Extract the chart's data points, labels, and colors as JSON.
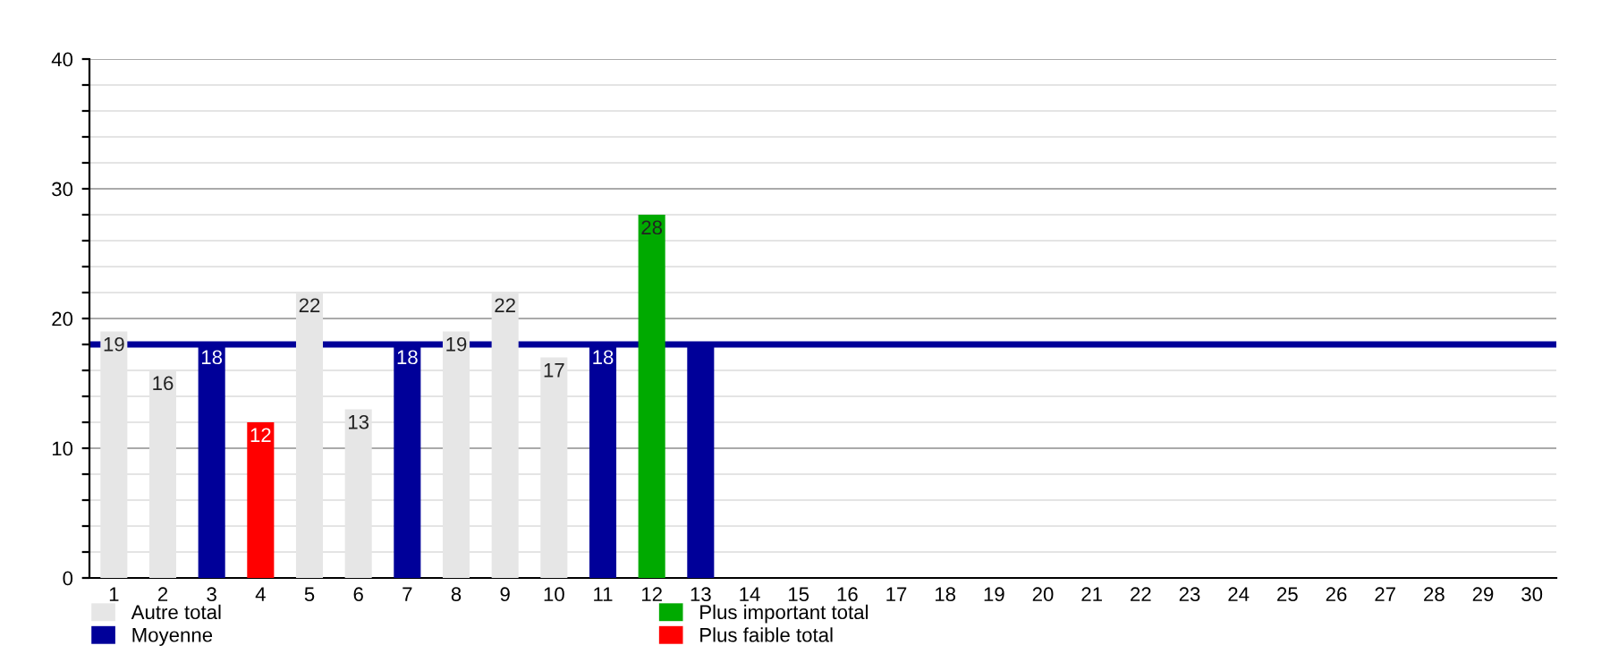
{
  "chart_data": {
    "type": "bar",
    "stacked": true,
    "categories": [
      "1",
      "2",
      "3",
      "4",
      "5",
      "6",
      "7",
      "8",
      "9",
      "10",
      "11",
      "12",
      "13",
      "14",
      "15",
      "16",
      "17",
      "18",
      "19",
      "20",
      "21",
      "22",
      "23",
      "24",
      "25",
      "26",
      "27",
      "28",
      "29",
      "30"
    ],
    "series": [
      {
        "name": "Autre total",
        "color": "#e6e6e6",
        "values": [
          19,
          16,
          null,
          null,
          22,
          13,
          null,
          19,
          22,
          17,
          null,
          null,
          null,
          null,
          null,
          null,
          null,
          null,
          null,
          null,
          null,
          null,
          null,
          null,
          null,
          null,
          null,
          null,
          null,
          null
        ],
        "value_labels": [
          "19",
          "16",
          null,
          null,
          "22",
          "13",
          null,
          "19",
          "22",
          "17",
          null,
          null,
          null,
          null,
          null,
          null,
          null,
          null,
          null,
          null,
          null,
          null,
          null,
          null,
          null,
          null,
          null,
          null,
          null,
          null
        ]
      },
      {
        "name": "Moyenne",
        "color": "#000099",
        "values": [
          null,
          null,
          18,
          null,
          null,
          null,
          18,
          null,
          null,
          null,
          18,
          null,
          18,
          null,
          null,
          null,
          null,
          null,
          null,
          null,
          null,
          null,
          null,
          null,
          null,
          null,
          null,
          null,
          null,
          null
        ],
        "value_labels": [
          null,
          null,
          "18",
          null,
          null,
          null,
          "18",
          null,
          null,
          null,
          "18",
          null,
          null,
          null,
          null,
          null,
          null,
          null,
          null,
          null,
          null,
          null,
          null,
          null,
          null,
          null,
          null,
          null,
          null,
          null
        ]
      },
      {
        "name": "Plus important total",
        "color": "#00aa00",
        "values": [
          null,
          null,
          null,
          null,
          null,
          null,
          null,
          null,
          null,
          null,
          null,
          28,
          null,
          null,
          null,
          null,
          null,
          null,
          null,
          null,
          null,
          null,
          null,
          null,
          null,
          null,
          null,
          null,
          null,
          null
        ],
        "value_labels": [
          null,
          null,
          null,
          null,
          null,
          null,
          null,
          null,
          null,
          null,
          null,
          "28",
          null,
          null,
          null,
          null,
          null,
          null,
          null,
          null,
          null,
          null,
          null,
          null,
          null,
          null,
          null,
          null,
          null,
          null
        ]
      },
      {
        "name": "Plus faible total",
        "color": "#ff0000",
        "values": [
          null,
          null,
          null,
          12,
          null,
          null,
          null,
          null,
          null,
          null,
          null,
          null,
          null,
          null,
          null,
          null,
          null,
          null,
          null,
          null,
          null,
          null,
          null,
          null,
          null,
          null,
          null,
          null,
          null,
          null
        ],
        "value_labels": [
          null,
          null,
          null,
          "12",
          null,
          null,
          null,
          null,
          null,
          null,
          null,
          null,
          null,
          null,
          null,
          null,
          null,
          null,
          null,
          null,
          null,
          null,
          null,
          null,
          null,
          null,
          null,
          null,
          null,
          null
        ]
      }
    ],
    "ref_lines": [
      {
        "axis": "y",
        "value": 18,
        "color": "#000099",
        "line_style": "solid"
      }
    ],
    "ylim": [
      0,
      40
    ],
    "yticks": [
      0,
      {
        "value": 2,
        "label": null
      },
      {
        "value": 4,
        "label": null
      },
      {
        "value": 6,
        "label": null
      },
      {
        "value": 8,
        "label": null
      },
      10,
      {
        "value": 12,
        "label": null
      },
      {
        "value": 14,
        "label": null
      },
      {
        "value": 16,
        "label": null
      },
      {
        "value": 18,
        "label": null
      },
      20,
      {
        "value": 22,
        "label": null
      },
      {
        "value": 24,
        "label": null
      },
      {
        "value": 26,
        "label": null
      },
      {
        "value": 28,
        "label": null
      },
      30,
      {
        "value": 32,
        "label": null
      },
      {
        "value": 34,
        "label": null
      },
      {
        "value": 36,
        "label": null
      },
      {
        "value": 38,
        "label": null
      },
      40
    ],
    "grid": "y",
    "legend": "bottom"
  }
}
